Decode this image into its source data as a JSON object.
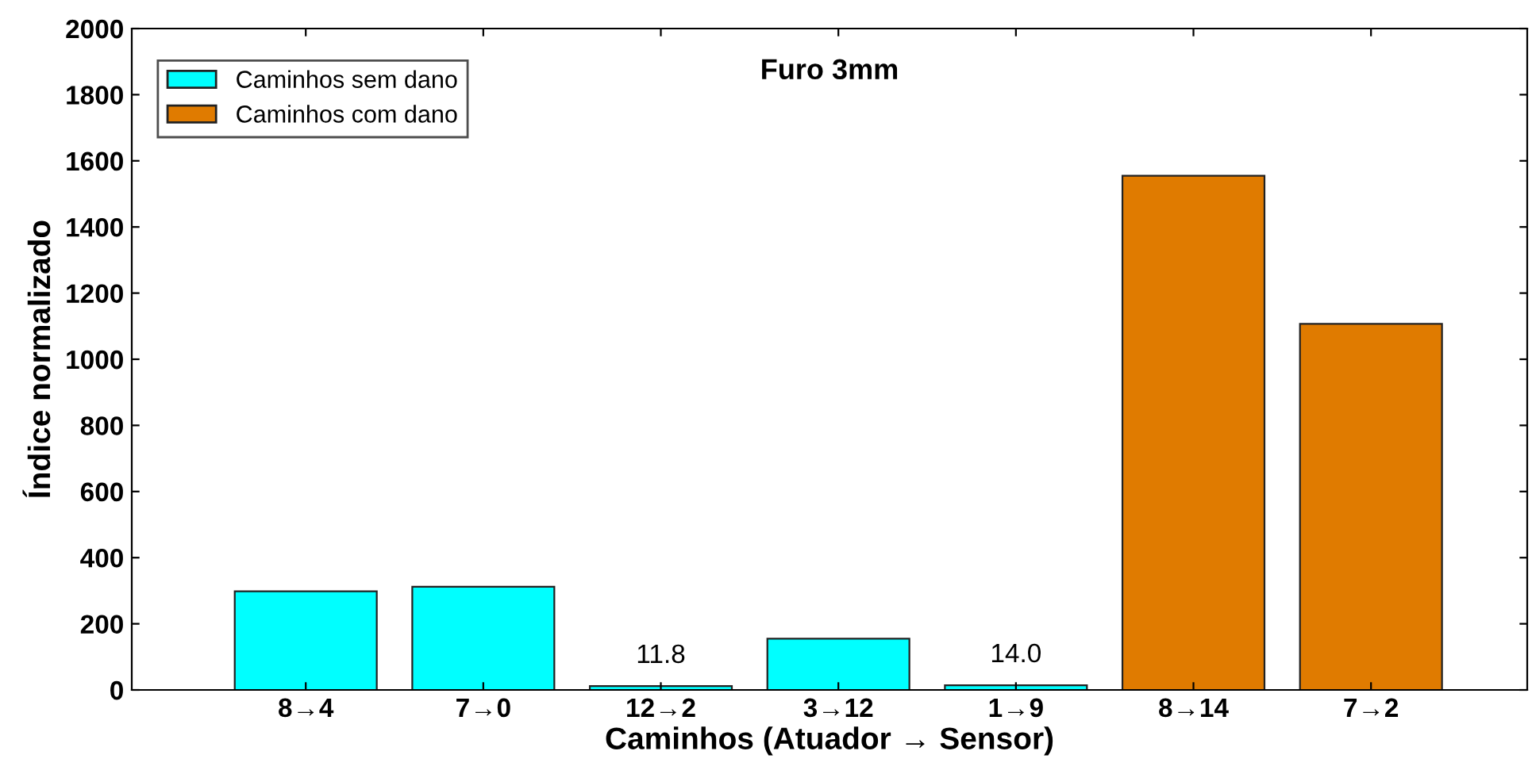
{
  "chart_data": {
    "type": "bar",
    "title": "Furo 3mm",
    "xlabel": "Caminhos (Atuador → Sensor)",
    "ylabel": "Índice normalizado",
    "categories": [
      "8→4",
      "7→0",
      "12→2",
      "3→12",
      "1→9",
      "8→14",
      "7→2"
    ],
    "series": [
      {
        "name": "Caminhos sem dano",
        "color": "#00ffff",
        "values": [
          298,
          312,
          11.8,
          155,
          14.0,
          null,
          null
        ],
        "value_labels": [
          null,
          null,
          "11.8",
          null,
          "14.0",
          null,
          null
        ]
      },
      {
        "name": "Caminhos com dano",
        "color": "#e07b00",
        "values": [
          null,
          null,
          null,
          null,
          null,
          1555,
          1107
        ]
      }
    ],
    "ylim": [
      0,
      2000
    ],
    "yticks": [
      0,
      200,
      400,
      600,
      800,
      1000,
      1200,
      1400,
      1600,
      1800,
      2000
    ],
    "grid": false,
    "legend": "top left"
  }
}
